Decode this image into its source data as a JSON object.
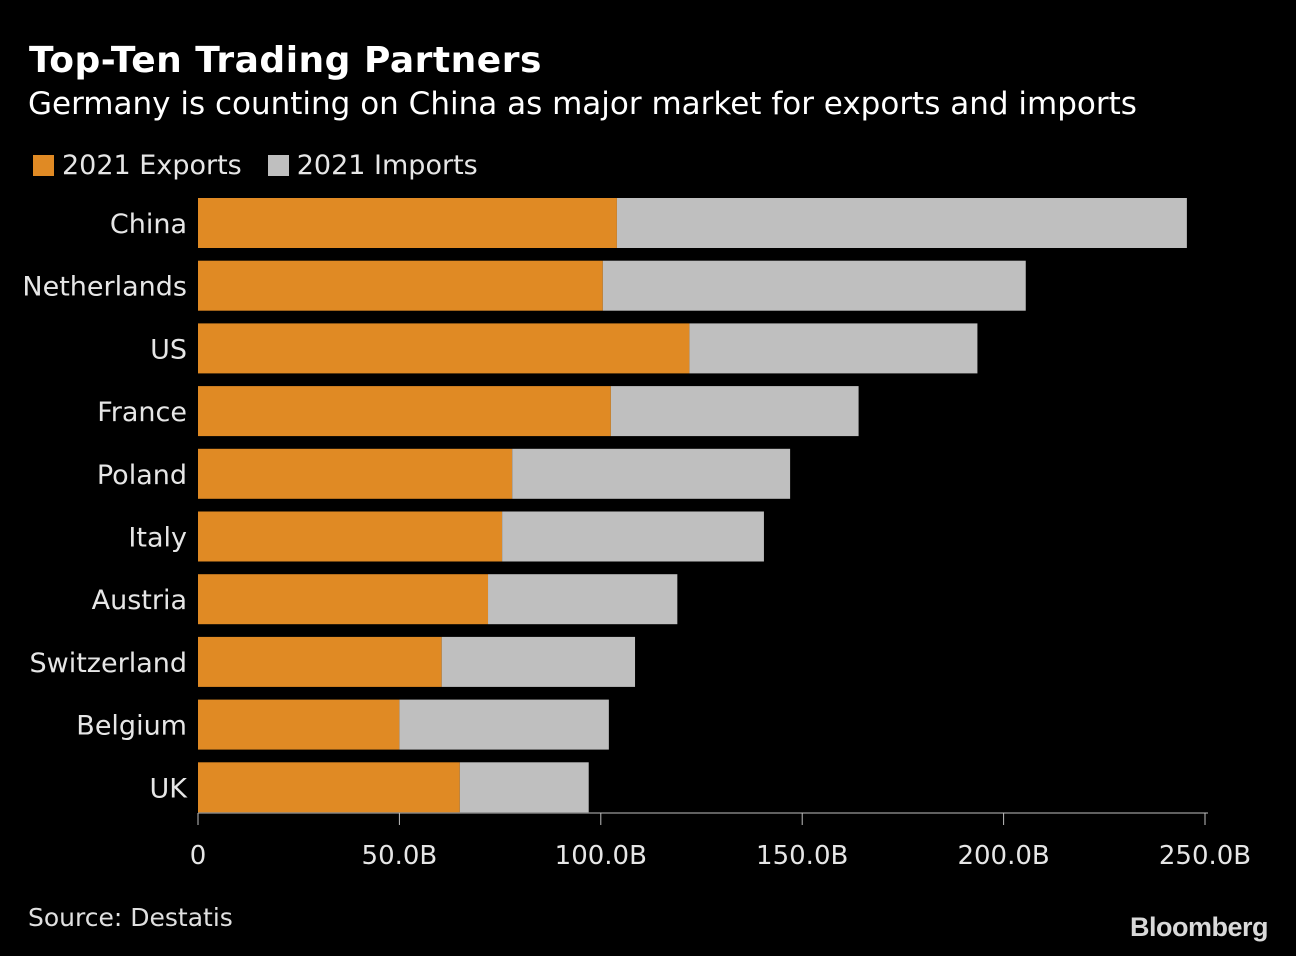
{
  "chart_data": {
    "type": "bar",
    "orientation": "horizontal",
    "stacked": true,
    "title": "Top-Ten Trading Partners",
    "subtitle": "Germany is counting on China as major market for exports and imports",
    "categories": [
      "China",
      "Netherlands",
      "US",
      "France",
      "Poland",
      "Italy",
      "Austria",
      "Switzerland",
      "Belgium",
      "UK"
    ],
    "series": [
      {
        "name": "2021 Exports",
        "color": "#e08a24",
        "values": [
          104.0,
          100.5,
          122.0,
          102.5,
          78.0,
          75.5,
          72.0,
          60.5,
          50.0,
          65.0
        ]
      },
      {
        "name": "2021 Imports",
        "color": "#bfbfbf",
        "values": [
          141.5,
          105.0,
          71.5,
          61.5,
          69.0,
          65.0,
          47.0,
          48.0,
          52.0,
          32.0
        ]
      }
    ],
    "xlim": [
      0,
      250
    ],
    "xticks": [
      0,
      50,
      100,
      150,
      200,
      250
    ],
    "xtick_labels": [
      "0",
      "50.0B",
      "100.0B",
      "150.0B",
      "200.0B",
      "250.0B"
    ],
    "xlabel": "",
    "ylabel": "",
    "grid": false,
    "legend_position": "top-left"
  },
  "source": "Source: Destatis",
  "brand": "Bloomberg",
  "background_color": "#000000"
}
